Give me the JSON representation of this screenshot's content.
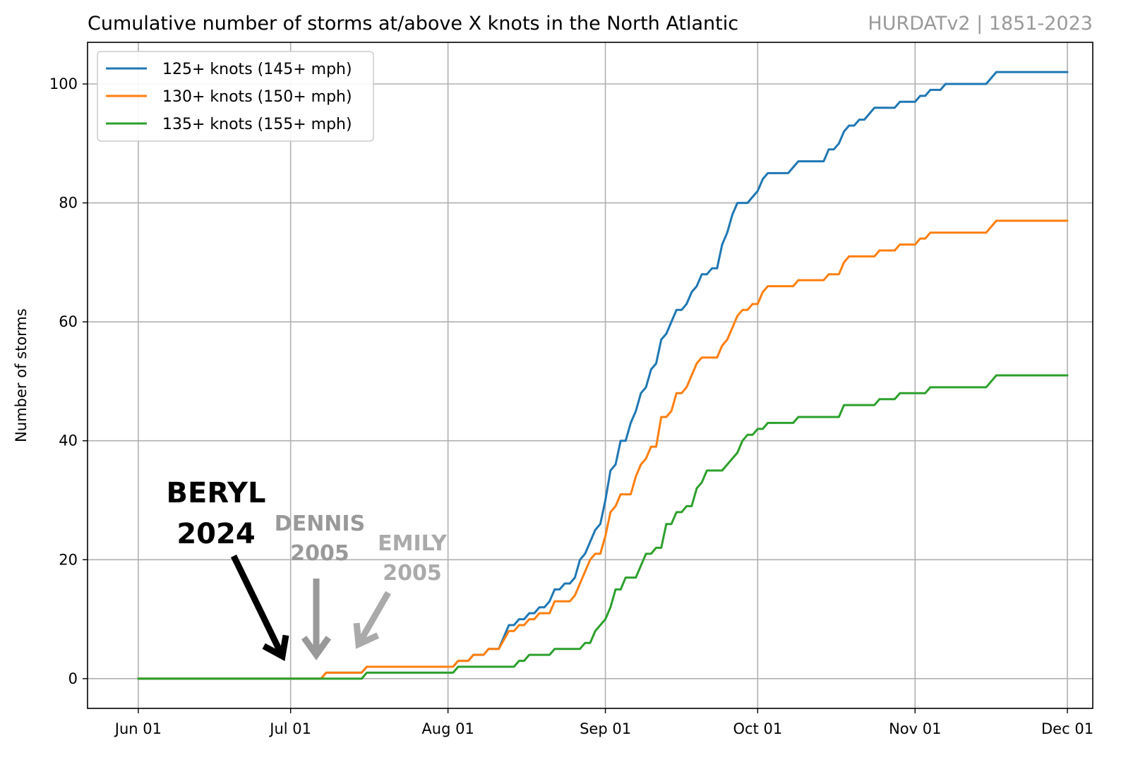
{
  "header": {
    "title": "Cumulative number of storms at/above X knots in the North Atlantic",
    "source": "HURDATv2 | 1851-2023"
  },
  "chart_data": {
    "type": "line",
    "title": "Cumulative number of storms at/above X knots in the North Atlantic",
    "xlabel": "",
    "ylabel": "Number of storms",
    "xlim": [
      "2024-05-22",
      "2024-12-06"
    ],
    "ylim": [
      -5,
      107
    ],
    "grid": true,
    "legend_position": "top-left",
    "x_ticks": [
      {
        "date": "2024-06-01",
        "label": "Jun 01"
      },
      {
        "date": "2024-07-01",
        "label": "Jul 01"
      },
      {
        "date": "2024-08-01",
        "label": "Aug 01"
      },
      {
        "date": "2024-09-01",
        "label": "Sep 01"
      },
      {
        "date": "2024-10-01",
        "label": "Oct 01"
      },
      {
        "date": "2024-11-01",
        "label": "Nov 01"
      },
      {
        "date": "2024-12-01",
        "label": "Dec 01"
      }
    ],
    "y_ticks": [
      0,
      20,
      40,
      60,
      80,
      100
    ],
    "series": [
      {
        "name": "125+ knots (145+ mph)",
        "color": "#1f77b4",
        "points": [
          [
            "2024-06-01",
            0
          ],
          [
            "2024-07-07",
            0
          ],
          [
            "2024-07-08",
            1
          ],
          [
            "2024-07-15",
            1
          ],
          [
            "2024-07-16",
            2
          ],
          [
            "2024-08-02",
            2
          ],
          [
            "2024-08-03",
            3
          ],
          [
            "2024-08-05",
            3
          ],
          [
            "2024-08-06",
            4
          ],
          [
            "2024-08-08",
            4
          ],
          [
            "2024-08-09",
            5
          ],
          [
            "2024-08-11",
            5
          ],
          [
            "2024-08-13",
            9
          ],
          [
            "2024-08-14",
            9
          ],
          [
            "2024-08-15",
            10
          ],
          [
            "2024-08-16",
            10
          ],
          [
            "2024-08-17",
            11
          ],
          [
            "2024-08-18",
            11
          ],
          [
            "2024-08-19",
            12
          ],
          [
            "2024-08-20",
            12
          ],
          [
            "2024-08-21",
            13
          ],
          [
            "2024-08-22",
            15
          ],
          [
            "2024-08-23",
            15
          ],
          [
            "2024-08-24",
            16
          ],
          [
            "2024-08-25",
            16
          ],
          [
            "2024-08-26",
            17
          ],
          [
            "2024-08-27",
            20
          ],
          [
            "2024-08-28",
            21
          ],
          [
            "2024-08-30",
            25
          ],
          [
            "2024-08-31",
            26
          ],
          [
            "2024-09-01",
            30
          ],
          [
            "2024-09-02",
            35
          ],
          [
            "2024-09-03",
            36
          ],
          [
            "2024-09-04",
            40
          ],
          [
            "2024-09-05",
            40
          ],
          [
            "2024-09-06",
            43
          ],
          [
            "2024-09-07",
            45
          ],
          [
            "2024-09-08",
            48
          ],
          [
            "2024-09-09",
            49
          ],
          [
            "2024-09-10",
            52
          ],
          [
            "2024-09-11",
            53
          ],
          [
            "2024-09-12",
            57
          ],
          [
            "2024-09-13",
            58
          ],
          [
            "2024-09-14",
            60
          ],
          [
            "2024-09-15",
            62
          ],
          [
            "2024-09-16",
            62
          ],
          [
            "2024-09-17",
            63
          ],
          [
            "2024-09-18",
            65
          ],
          [
            "2024-09-19",
            66
          ],
          [
            "2024-09-20",
            68
          ],
          [
            "2024-09-21",
            68
          ],
          [
            "2024-09-22",
            69
          ],
          [
            "2024-09-23",
            69
          ],
          [
            "2024-09-24",
            73
          ],
          [
            "2024-09-25",
            75
          ],
          [
            "2024-09-26",
            78
          ],
          [
            "2024-09-27",
            80
          ],
          [
            "2024-09-29",
            80
          ],
          [
            "2024-09-30",
            81
          ],
          [
            "2024-10-01",
            82
          ],
          [
            "2024-10-02",
            84
          ],
          [
            "2024-10-03",
            85
          ],
          [
            "2024-10-07",
            85
          ],
          [
            "2024-10-08",
            86
          ],
          [
            "2024-10-09",
            87
          ],
          [
            "2024-10-14",
            87
          ],
          [
            "2024-10-15",
            89
          ],
          [
            "2024-10-16",
            89
          ],
          [
            "2024-10-17",
            90
          ],
          [
            "2024-10-18",
            92
          ],
          [
            "2024-10-19",
            93
          ],
          [
            "2024-10-20",
            93
          ],
          [
            "2024-10-21",
            94
          ],
          [
            "2024-10-22",
            94
          ],
          [
            "2024-10-23",
            95
          ],
          [
            "2024-10-24",
            96
          ],
          [
            "2024-10-28",
            96
          ],
          [
            "2024-10-29",
            97
          ],
          [
            "2024-11-01",
            97
          ],
          [
            "2024-11-02",
            98
          ],
          [
            "2024-11-03",
            98
          ],
          [
            "2024-11-04",
            99
          ],
          [
            "2024-11-06",
            99
          ],
          [
            "2024-11-07",
            100
          ],
          [
            "2024-11-15",
            100
          ],
          [
            "2024-11-17",
            102
          ],
          [
            "2024-12-01",
            102
          ]
        ]
      },
      {
        "name": "130+ knots (150+ mph)",
        "color": "#ff7f0e",
        "points": [
          [
            "2024-06-01",
            0
          ],
          [
            "2024-07-07",
            0
          ],
          [
            "2024-07-08",
            1
          ],
          [
            "2024-07-15",
            1
          ],
          [
            "2024-07-16",
            2
          ],
          [
            "2024-08-02",
            2
          ],
          [
            "2024-08-03",
            3
          ],
          [
            "2024-08-05",
            3
          ],
          [
            "2024-08-06",
            4
          ],
          [
            "2024-08-08",
            4
          ],
          [
            "2024-08-09",
            5
          ],
          [
            "2024-08-11",
            5
          ],
          [
            "2024-08-13",
            8
          ],
          [
            "2024-08-14",
            8
          ],
          [
            "2024-08-15",
            9
          ],
          [
            "2024-08-16",
            9
          ],
          [
            "2024-08-17",
            10
          ],
          [
            "2024-08-18",
            10
          ],
          [
            "2024-08-19",
            11
          ],
          [
            "2024-08-21",
            11
          ],
          [
            "2024-08-22",
            13
          ],
          [
            "2024-08-25",
            13
          ],
          [
            "2024-08-26",
            14
          ],
          [
            "2024-08-28",
            18
          ],
          [
            "2024-08-29",
            20
          ],
          [
            "2024-08-30",
            21
          ],
          [
            "2024-08-31",
            21
          ],
          [
            "2024-09-01",
            24
          ],
          [
            "2024-09-02",
            28
          ],
          [
            "2024-09-03",
            29
          ],
          [
            "2024-09-04",
            31
          ],
          [
            "2024-09-06",
            31
          ],
          [
            "2024-09-07",
            34
          ],
          [
            "2024-09-08",
            36
          ],
          [
            "2024-09-09",
            37
          ],
          [
            "2024-09-10",
            39
          ],
          [
            "2024-09-11",
            39
          ],
          [
            "2024-09-12",
            44
          ],
          [
            "2024-09-13",
            44
          ],
          [
            "2024-09-14",
            45
          ],
          [
            "2024-09-15",
            48
          ],
          [
            "2024-09-16",
            48
          ],
          [
            "2024-09-17",
            49
          ],
          [
            "2024-09-18",
            51
          ],
          [
            "2024-09-19",
            53
          ],
          [
            "2024-09-20",
            54
          ],
          [
            "2024-09-23",
            54
          ],
          [
            "2024-09-24",
            56
          ],
          [
            "2024-09-25",
            57
          ],
          [
            "2024-09-26",
            59
          ],
          [
            "2024-09-27",
            61
          ],
          [
            "2024-09-28",
            62
          ],
          [
            "2024-09-29",
            62
          ],
          [
            "2024-09-30",
            63
          ],
          [
            "2024-10-01",
            63
          ],
          [
            "2024-10-02",
            65
          ],
          [
            "2024-10-03",
            66
          ],
          [
            "2024-10-08",
            66
          ],
          [
            "2024-10-09",
            67
          ],
          [
            "2024-10-14",
            67
          ],
          [
            "2024-10-15",
            68
          ],
          [
            "2024-10-17",
            68
          ],
          [
            "2024-10-18",
            70
          ],
          [
            "2024-10-19",
            71
          ],
          [
            "2024-10-24",
            71
          ],
          [
            "2024-10-25",
            72
          ],
          [
            "2024-10-28",
            72
          ],
          [
            "2024-10-29",
            73
          ],
          [
            "2024-11-01",
            73
          ],
          [
            "2024-11-02",
            74
          ],
          [
            "2024-11-03",
            74
          ],
          [
            "2024-11-04",
            75
          ],
          [
            "2024-11-15",
            75
          ],
          [
            "2024-11-17",
            77
          ],
          [
            "2024-12-01",
            77
          ]
        ]
      },
      {
        "name": "135+ knots (155+ mph)",
        "color": "#2ca02c",
        "points": [
          [
            "2024-06-01",
            0
          ],
          [
            "2024-07-15",
            0
          ],
          [
            "2024-07-16",
            1
          ],
          [
            "2024-08-02",
            1
          ],
          [
            "2024-08-03",
            2
          ],
          [
            "2024-08-14",
            2
          ],
          [
            "2024-08-15",
            3
          ],
          [
            "2024-08-16",
            3
          ],
          [
            "2024-08-17",
            4
          ],
          [
            "2024-08-21",
            4
          ],
          [
            "2024-08-22",
            5
          ],
          [
            "2024-08-27",
            5
          ],
          [
            "2024-08-28",
            6
          ],
          [
            "2024-08-29",
            6
          ],
          [
            "2024-08-30",
            8
          ],
          [
            "2024-09-01",
            10
          ],
          [
            "2024-09-02",
            12
          ],
          [
            "2024-09-03",
            15
          ],
          [
            "2024-09-04",
            15
          ],
          [
            "2024-09-05",
            17
          ],
          [
            "2024-09-07",
            17
          ],
          [
            "2024-09-08",
            19
          ],
          [
            "2024-09-09",
            21
          ],
          [
            "2024-09-10",
            21
          ],
          [
            "2024-09-11",
            22
          ],
          [
            "2024-09-12",
            22
          ],
          [
            "2024-09-13",
            26
          ],
          [
            "2024-09-14",
            26
          ],
          [
            "2024-09-15",
            28
          ],
          [
            "2024-09-16",
            28
          ],
          [
            "2024-09-17",
            29
          ],
          [
            "2024-09-18",
            29
          ],
          [
            "2024-09-19",
            32
          ],
          [
            "2024-09-20",
            33
          ],
          [
            "2024-09-21",
            35
          ],
          [
            "2024-09-24",
            35
          ],
          [
            "2024-09-25",
            36
          ],
          [
            "2024-09-26",
            37
          ],
          [
            "2024-09-27",
            38
          ],
          [
            "2024-09-28",
            40
          ],
          [
            "2024-09-29",
            41
          ],
          [
            "2024-09-30",
            41
          ],
          [
            "2024-10-01",
            42
          ],
          [
            "2024-10-02",
            42
          ],
          [
            "2024-10-03",
            43
          ],
          [
            "2024-10-08",
            43
          ],
          [
            "2024-10-09",
            44
          ],
          [
            "2024-10-17",
            44
          ],
          [
            "2024-10-18",
            46
          ],
          [
            "2024-10-24",
            46
          ],
          [
            "2024-10-25",
            47
          ],
          [
            "2024-10-28",
            47
          ],
          [
            "2024-10-29",
            48
          ],
          [
            "2024-11-03",
            48
          ],
          [
            "2024-11-04",
            49
          ],
          [
            "2024-11-15",
            49
          ],
          [
            "2024-11-17",
            51
          ],
          [
            "2024-12-01",
            51
          ]
        ]
      }
    ],
    "annotations": [
      {
        "text": [
          "BERYL",
          "2024"
        ],
        "color": "#000000",
        "arrow_date": "2024-07-01",
        "arrow_y": 3
      },
      {
        "text": [
          "DENNIS",
          "2005"
        ],
        "color": "#999999",
        "arrow_date": "2024-07-07",
        "arrow_y": 4
      },
      {
        "text": [
          "EMILY",
          "2005"
        ],
        "color": "#aaaaaa",
        "arrow_date": "2024-07-16",
        "arrow_y": 5
      }
    ]
  }
}
